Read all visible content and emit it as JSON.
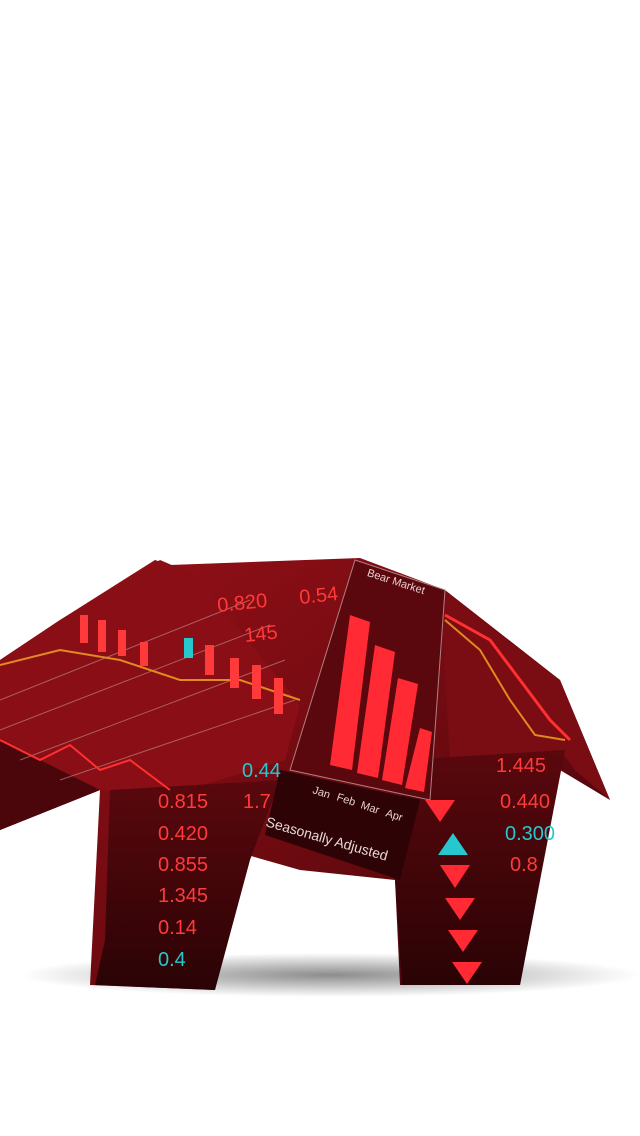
{
  "bear": {
    "panel_title": "Bear Market",
    "months": [
      "Jan",
      "Feb",
      "Mar",
      "Apr"
    ],
    "caption": "Seasonally Adjusted",
    "back_values": [
      "0.820",
      "0.54",
      "145"
    ],
    "front_leg_values": [
      "0.815",
      "0.420",
      "0.855",
      "1.345",
      "0.14",
      "0.4"
    ],
    "front_leg_side_values": [
      "0.44",
      "1.7"
    ],
    "rear_leg_values": [
      "1.445",
      "0.440",
      "0.300",
      "0.8"
    ]
  }
}
